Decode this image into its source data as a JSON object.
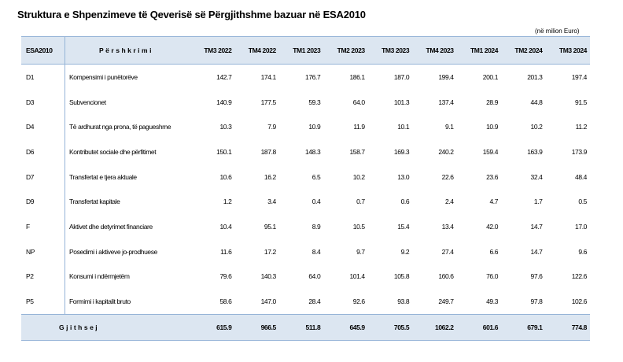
{
  "title": "Struktura e Shpenzimeve të Qeverisë së Përgjithshme bazuar në ESA2010",
  "unit": "(në milion Euro)",
  "headers": {
    "code": "ESA2010",
    "desc": "Përshkrimi",
    "periods": [
      "TM3 2022",
      "TM4 2022",
      "TM1 2023",
      "TM2 2023",
      "TM3 2023",
      "TM4 2023",
      "TM1 2024",
      "TM2 2024",
      "TM3 2024"
    ]
  },
  "rows": [
    {
      "code": "D1",
      "desc": "Kompensimi i punëtorëve",
      "values": [
        "142.7",
        "174.1",
        "176.7",
        "186.1",
        "187.0",
        "199.4",
        "200.1",
        "201.3",
        "197.4"
      ]
    },
    {
      "code": "D3",
      "desc": "Subvencionet",
      "values": [
        "140.9",
        "177.5",
        "59.3",
        "64.0",
        "101.3",
        "137.4",
        "28.9",
        "44.8",
        "91.5"
      ]
    },
    {
      "code": "D4",
      "desc": "Të ardhurat nga prona, të pagueshme",
      "values": [
        "10.3",
        "7.9",
        "10.9",
        "11.9",
        "10.1",
        "9.1",
        "10.9",
        "10.2",
        "11.2"
      ]
    },
    {
      "code": "D6",
      "desc": "Kontributet sociale dhe përfitimet",
      "values": [
        "150.1",
        "187.8",
        "148.3",
        "158.7",
        "169.3",
        "240.2",
        "159.4",
        "163.9",
        "173.9"
      ]
    },
    {
      "code": "D7",
      "desc": "Transfertat e tjera aktuale",
      "values": [
        "10.6",
        "16.2",
        "6.5",
        "10.2",
        "13.0",
        "22.6",
        "23.6",
        "32.4",
        "48.4"
      ]
    },
    {
      "code": "D9",
      "desc": "Transfertat kapitale",
      "values": [
        "1.2",
        "3.4",
        "0.4",
        "0.7",
        "0.6",
        "2.4",
        "4.7",
        "1.7",
        "0.5"
      ]
    },
    {
      "code": "F",
      "desc": "Aktivet dhe detyrimet financiare",
      "values": [
        "10.4",
        "95.1",
        "8.9",
        "10.5",
        "15.4",
        "13.4",
        "42.0",
        "14.7",
        "17.0"
      ]
    },
    {
      "code": "NP",
      "desc": "Posedimi i aktiveve jo-prodhuese",
      "values": [
        "11.6",
        "17.2",
        "8.4",
        "9.7",
        "9.2",
        "27.4",
        "6.6",
        "14.7",
        "9.6"
      ]
    },
    {
      "code": "P2",
      "desc": "Konsumi i ndërmjetëm",
      "values": [
        "79.6",
        "140.3",
        "64.0",
        "101.4",
        "105.8",
        "160.6",
        "76.0",
        "97.6",
        "122.6"
      ]
    },
    {
      "code": "P5",
      "desc": "Formimi i kapitalit bruto",
      "values": [
        "58.6",
        "147.0",
        "28.4",
        "92.6",
        "93.8",
        "249.7",
        "49.3",
        "97.8",
        "102.6"
      ]
    }
  ],
  "total": {
    "label": "Gjithsej",
    "values": [
      "615.9",
      "966.5",
      "511.8",
      "645.9",
      "705.5",
      "1062.2",
      "601.6",
      "679.1",
      "774.8"
    ]
  }
}
